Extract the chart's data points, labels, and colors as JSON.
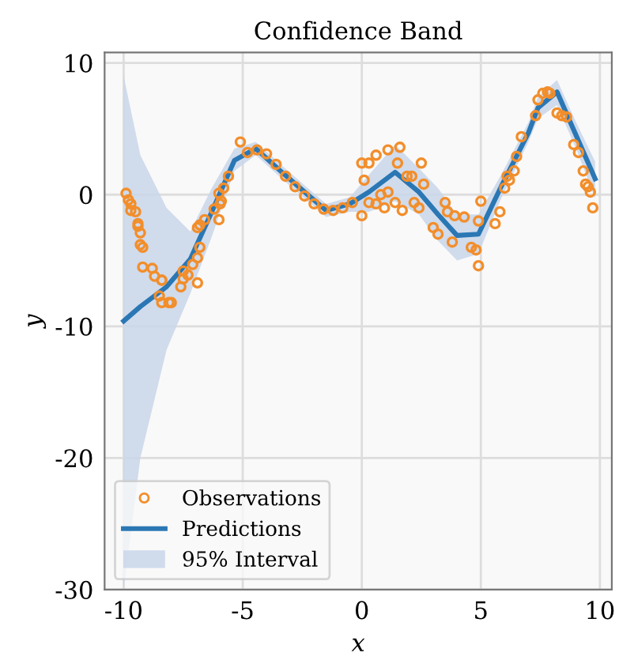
{
  "chart_data": {
    "type": "line",
    "title": "Confidence Band",
    "xlabel": "x",
    "ylabel": "y",
    "xlim": [
      -10.8,
      10.5
    ],
    "ylim": [
      -30,
      10.8
    ],
    "xticks": [
      -10,
      -5,
      0,
      5,
      10
    ],
    "yticks": [
      -30,
      -20,
      -10,
      0,
      10
    ],
    "grid": true,
    "legend": "bottom left",
    "annotations": [
      "95% Interval"
    ],
    "series": [
      {
        "type": "scatter",
        "name": "Observations",
        "color": "#f28e2b",
        "marker": "circle",
        "x": [
          -9.9,
          -9.8,
          -9.7,
          -9.7,
          -9.5,
          -9.4,
          -9.4,
          -9.3,
          -9.3,
          -9.2,
          -9.2,
          -8.7,
          -8.8,
          -8.4,
          -8.5,
          -8.4,
          -8.1,
          -8.0,
          -8.4,
          -7.6,
          -7.5,
          -7.5,
          -7.3,
          -6.9,
          -7.1,
          -6.9,
          -6.8,
          -6.9,
          -6.8,
          -6.6,
          -6.2,
          -6.0,
          -5.95,
          -6.0,
          -5.9,
          -5.8,
          -5.6,
          -5.1,
          -4.8,
          -4.4,
          -4.0,
          -3.6,
          -3.2,
          -2.8,
          -2.4,
          -2.0,
          -1.6,
          -1.2,
          -0.8,
          -0.4,
          0.0,
          0.1,
          0.3,
          0.6,
          1.1,
          1.6,
          1.5,
          0.0,
          0.3,
          0.6,
          0.8,
          1.1,
          1.4,
          0.95,
          1.7,
          1.9,
          2.1,
          2.2,
          2.5,
          2.6,
          2.4,
          3.0,
          3.2,
          3.5,
          3.6,
          3.9,
          3.8,
          4.3,
          4.6,
          4.8,
          4.9,
          4.9,
          5.0,
          5.6,
          5.8,
          6.0,
          6.1,
          6.2,
          6.4,
          6.5,
          6.7,
          7.3,
          7.4,
          7.6,
          7.9,
          7.8,
          8.2,
          8.4,
          8.6,
          8.9,
          9.1,
          9.3,
          9.4,
          9.5,
          9.6,
          9.7
        ],
        "values": [
          0.1,
          -0.4,
          -0.7,
          -1.2,
          -1.3,
          -2.2,
          -2.4,
          -2.9,
          -3.8,
          -4.0,
          -5.5,
          -6.2,
          -5.6,
          -6.5,
          -7.7,
          -8.2,
          -8.2,
          -8.2,
          -6.5,
          -7.0,
          -6.4,
          -5.8,
          -6.1,
          -6.7,
          -5.3,
          -4.8,
          -4.0,
          -2.5,
          -2.3,
          -1.9,
          -1.1,
          -1.9,
          -0.7,
          0.1,
          -0.5,
          0.5,
          1.4,
          4.0,
          3.2,
          3.4,
          3.1,
          2.3,
          1.4,
          0.6,
          -0.1,
          -0.7,
          -1.1,
          -1.2,
          -1.0,
          -0.6,
          2.4,
          1.1,
          2.4,
          3.0,
          3.4,
          3.6,
          2.4,
          -1.6,
          -0.6,
          -0.7,
          0.0,
          0.2,
          -0.6,
          -1.0,
          -1.2,
          1.4,
          1.4,
          -0.6,
          2.4,
          0.8,
          -1.0,
          -2.5,
          -3.0,
          -0.6,
          -1.3,
          -1.6,
          -3.6,
          -1.7,
          -4.0,
          -4.2,
          -5.4,
          -2.0,
          -0.5,
          -2.2,
          -1.3,
          0.5,
          1.4,
          1.1,
          1.8,
          2.9,
          4.4,
          6.0,
          7.2,
          7.7,
          7.7,
          7.8,
          6.2,
          6.0,
          5.9,
          3.8,
          3.2,
          1.8,
          0.8,
          0.6,
          0.2,
          -1.0
        ]
      },
      {
        "type": "line",
        "name": "Predictions",
        "color": "#2a77b4",
        "line_style": "solid",
        "marker": "none",
        "x": [
          -10,
          -9.3,
          -8.2,
          -7.2,
          -6.3,
          -5.35,
          -4.45,
          -3.35,
          -2.4,
          -1.5,
          -0.5,
          0.3,
          1.4,
          2.4,
          3.2,
          4.0,
          4.9,
          5.85,
          7.0,
          7.4,
          8.2,
          9.0,
          9.8
        ],
        "values": [
          -9.6,
          -8.5,
          -7.0,
          -4.9,
          -1.3,
          2.6,
          3.5,
          1.7,
          0.2,
          -1.2,
          -0.7,
          0.2,
          1.7,
          0.2,
          -1.5,
          -3.1,
          -3.0,
          0.6,
          4.7,
          6.6,
          7.8,
          4.5,
          1.2
        ],
        "upper": [
          9,
          3,
          -1,
          -2.8,
          0.5,
          3.5,
          4,
          2.2,
          0.7,
          -0.7,
          -0.2,
          1.5,
          3.8,
          2,
          0.5,
          -1.5,
          -1.5,
          1.5,
          5.5,
          7.4,
          8.7,
          5.5,
          2.5
        ],
        "lower": [
          -30,
          -20,
          -11.8,
          -7.5,
          -3.2,
          1.8,
          3,
          1.2,
          -0.3,
          -1.7,
          -1.3,
          -1.3,
          -0.5,
          -1.5,
          -3.5,
          -5,
          -4.5,
          -0.3,
          4,
          5.8,
          6.8,
          3.5,
          -0.3
        ]
      }
    ]
  }
}
